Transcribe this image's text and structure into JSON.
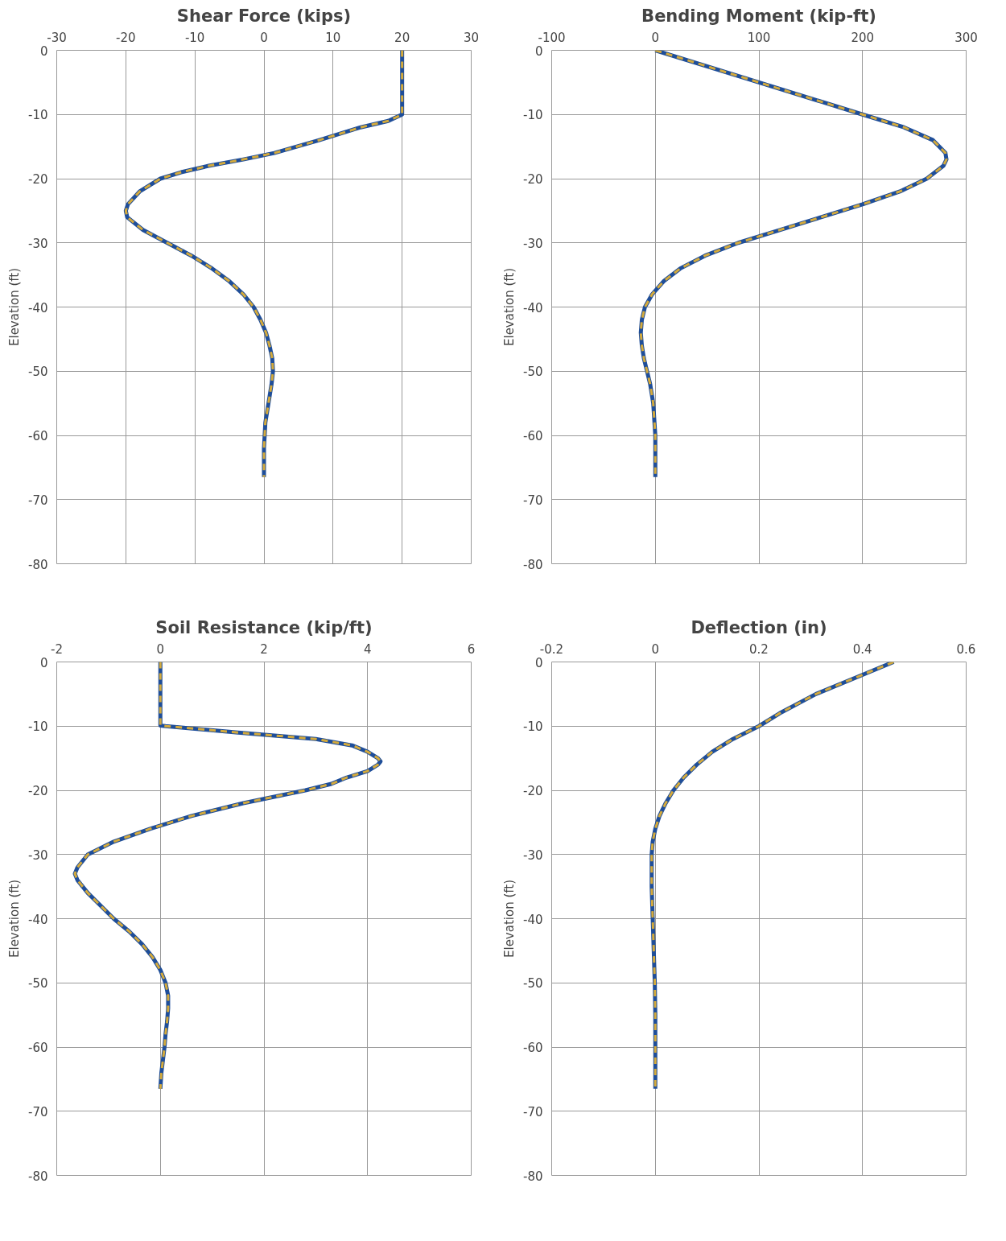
{
  "chart_data": [
    {
      "type": "line",
      "title": "Shear Force (kips)",
      "ylabel": "Elevation (ft)",
      "xlim": [
        -30,
        30
      ],
      "xticks": [
        -30,
        -20,
        -10,
        0,
        10,
        20,
        30
      ],
      "ylim": [
        -80,
        0
      ],
      "yticks": [
        -80,
        -70,
        -60,
        -50,
        -40,
        -30,
        -20,
        -10,
        0
      ],
      "grid": true,
      "series": [
        {
          "color": "#1f4e99",
          "line_style": "solid",
          "x": [
            20,
            20,
            18,
            14,
            8,
            1.5,
            -3,
            -8,
            -12,
            -15,
            -18,
            -19.7,
            -20,
            -19.8,
            -17.5,
            -14,
            -10.5,
            -7.5,
            -5,
            -3,
            -1.5,
            -0.5,
            0.3,
            0.8,
            1.2,
            1.3,
            1.1,
            0.8,
            0.5,
            0.2,
            0.1,
            0,
            0,
            0
          ],
          "values": [
            0,
            -10,
            -11,
            -12,
            -14,
            -16,
            -17,
            -18,
            -19,
            -20,
            -22,
            -24,
            -25,
            -26,
            -28,
            -30,
            -32,
            -34,
            -36,
            -38,
            -40,
            -42,
            -44,
            -46,
            -48,
            -50,
            -52,
            -54,
            -56,
            -58,
            -60,
            -62,
            -64,
            -66.5
          ]
        },
        {
          "color": "#d4aa3c",
          "line_style": "dashed",
          "x": [
            20,
            20,
            18,
            14,
            8,
            1.5,
            -3,
            -8,
            -12,
            -15,
            -18,
            -19.7,
            -20,
            -19.8,
            -17.5,
            -14,
            -10.5,
            -7.5,
            -5,
            -3,
            -1.5,
            -0.5,
            0.3,
            0.8,
            1.2,
            1.3,
            1.1,
            0.8,
            0.5,
            0.2,
            0.1,
            0,
            0,
            0
          ],
          "values": [
            0,
            -10,
            -11,
            -12,
            -14,
            -16,
            -17,
            -18,
            -19,
            -20,
            -22,
            -24,
            -25,
            -26,
            -28,
            -30,
            -32,
            -34,
            -36,
            -38,
            -40,
            -42,
            -44,
            -46,
            -48,
            -50,
            -52,
            -54,
            -56,
            -58,
            -60,
            -62,
            -64,
            -66.5
          ]
        }
      ]
    },
    {
      "type": "line",
      "title": "Bending Moment (kip-ft)",
      "ylabel": "Elevation (ft)",
      "xlim": [
        -100,
        300
      ],
      "xticks": [
        -100,
        0,
        100,
        200,
        300
      ],
      "ylim": [
        -80,
        0
      ],
      "yticks": [
        -80,
        -70,
        -60,
        -50,
        -40,
        -30,
        -20,
        -10,
        0
      ],
      "grid": true,
      "series": [
        {
          "color": "#1f4e99",
          "line_style": "solid",
          "x": [
            0,
            100,
            200,
            240,
            268,
            280,
            281,
            278,
            262,
            236,
            200,
            160,
            120,
            80,
            48,
            24,
            8,
            -3,
            -10,
            -13,
            -14,
            -13,
            -11,
            -8,
            -5,
            -2,
            0,
            0
          ],
          "values": [
            0,
            -5,
            -10,
            -12,
            -14,
            -16,
            -17,
            -18,
            -20,
            -22,
            -24,
            -26,
            -28,
            -30,
            -32,
            -34,
            -36,
            -38,
            -40,
            -42,
            -44,
            -46,
            -48,
            -50,
            -52,
            -55,
            -60,
            -66.5
          ]
        },
        {
          "color": "#d4aa3c",
          "line_style": "dashed",
          "x": [
            0,
            100,
            200,
            240,
            268,
            280,
            281,
            278,
            262,
            236,
            200,
            160,
            120,
            80,
            48,
            24,
            8,
            -3,
            -10,
            -13,
            -14,
            -13,
            -11,
            -8,
            -5,
            -2,
            0,
            0
          ],
          "values": [
            0,
            -5,
            -10,
            -12,
            -14,
            -16,
            -17,
            -18,
            -20,
            -22,
            -24,
            -26,
            -28,
            -30,
            -32,
            -34,
            -36,
            -38,
            -40,
            -42,
            -44,
            -46,
            -48,
            -50,
            -52,
            -55,
            -60,
            -66.5
          ]
        }
      ]
    },
    {
      "type": "line",
      "title": "Soil Resistance (kip/ft)",
      "ylabel": "Elevation (ft)",
      "xlim": [
        -2,
        6
      ],
      "xticks": [
        -2,
        0,
        2,
        4,
        6
      ],
      "ylim": [
        -80,
        0
      ],
      "yticks": [
        -80,
        -70,
        -60,
        -50,
        -40,
        -30,
        -20,
        -10,
        0
      ],
      "grid": true,
      "series": [
        {
          "color": "#1f4e99",
          "line_style": "solid",
          "x": [
            0,
            0,
            0.1,
            1.5,
            3,
            3.7,
            4.0,
            4.2,
            4.25,
            4.2,
            4.0,
            3.6,
            3.3,
            2.8,
            2.2,
            1.6,
            0.6,
            0.2,
            -0.2,
            -0.9,
            -1.4,
            -1.6,
            -1.65,
            -1.6,
            -1.4,
            -1.15,
            -0.9,
            -0.6,
            -0.35,
            -0.15,
            0,
            0.1,
            0.15,
            0.15,
            0.13,
            0.1,
            0.08,
            0.05,
            0.02,
            0
          ],
          "values": [
            0,
            -9.9,
            -10,
            -11,
            -12,
            -13,
            -14,
            -15,
            -15.5,
            -16,
            -17,
            -18,
            -19,
            -20,
            -21,
            -22,
            -24,
            -25,
            -26,
            -28,
            -30,
            -32,
            -33,
            -34,
            -36,
            -38,
            -40,
            -42,
            -44,
            -46,
            -48,
            -50,
            -52,
            -54,
            -56,
            -58,
            -60,
            -62,
            -64,
            -66.5
          ]
        },
        {
          "color": "#d4aa3c",
          "line_style": "dashed",
          "x": [
            0,
            0,
            0.1,
            1.5,
            3,
            3.7,
            4.0,
            4.2,
            4.25,
            4.2,
            4.0,
            3.6,
            3.3,
            2.8,
            2.2,
            1.6,
            0.6,
            0.2,
            -0.2,
            -0.9,
            -1.4,
            -1.6,
            -1.65,
            -1.6,
            -1.4,
            -1.15,
            -0.9,
            -0.6,
            -0.35,
            -0.15,
            0,
            0.1,
            0.15,
            0.15,
            0.13,
            0.1,
            0.08,
            0.05,
            0.02,
            0
          ],
          "values": [
            0,
            -9.9,
            -10,
            -11,
            -12,
            -13,
            -14,
            -15,
            -15.5,
            -16,
            -17,
            -18,
            -19,
            -20,
            -21,
            -22,
            -24,
            -25,
            -26,
            -28,
            -30,
            -32,
            -33,
            -34,
            -36,
            -38,
            -40,
            -42,
            -44,
            -46,
            -48,
            -50,
            -52,
            -54,
            -56,
            -58,
            -60,
            -62,
            -64,
            -66.5
          ]
        }
      ]
    },
    {
      "type": "line",
      "title": "Deflection (in)",
      "ylabel": "Elevation (ft)",
      "xlim": [
        -0.2,
        0.6
      ],
      "xticks": [
        -0.2,
        0,
        0.2,
        0.4,
        0.6
      ],
      "ylim": [
        -80,
        0
      ],
      "yticks": [
        -80,
        -70,
        -60,
        -50,
        -40,
        -30,
        -20,
        -10,
        0
      ],
      "grid": true,
      "series": [
        {
          "color": "#1f4e99",
          "line_style": "solid",
          "x": [
            0.46,
            0.4,
            0.31,
            0.24,
            0.2,
            0.15,
            0.11,
            0.08,
            0.055,
            0.035,
            0.02,
            0.008,
            0,
            -0.005,
            -0.007,
            -0.007,
            -0.005,
            -0.003,
            -0.001,
            0,
            0,
            0
          ],
          "values": [
            0,
            -2,
            -5,
            -8,
            -10,
            -12,
            -14,
            -16,
            -18,
            -20,
            -22,
            -24,
            -26,
            -28,
            -30,
            -35,
            -40,
            -45,
            -50,
            -55,
            -60,
            -66.5
          ]
        },
        {
          "color": "#d4aa3c",
          "line_style": "dashed",
          "x": [
            0.46,
            0.4,
            0.31,
            0.24,
            0.2,
            0.15,
            0.11,
            0.08,
            0.055,
            0.035,
            0.02,
            0.008,
            0,
            -0.005,
            -0.007,
            -0.007,
            -0.005,
            -0.003,
            -0.001,
            0,
            0,
            0
          ],
          "values": [
            0,
            -2,
            -5,
            -8,
            -10,
            -12,
            -14,
            -16,
            -18,
            -20,
            -22,
            -24,
            -26,
            -28,
            -30,
            -35,
            -40,
            -45,
            -50,
            -55,
            -60,
            -66.5
          ]
        }
      ]
    }
  ]
}
